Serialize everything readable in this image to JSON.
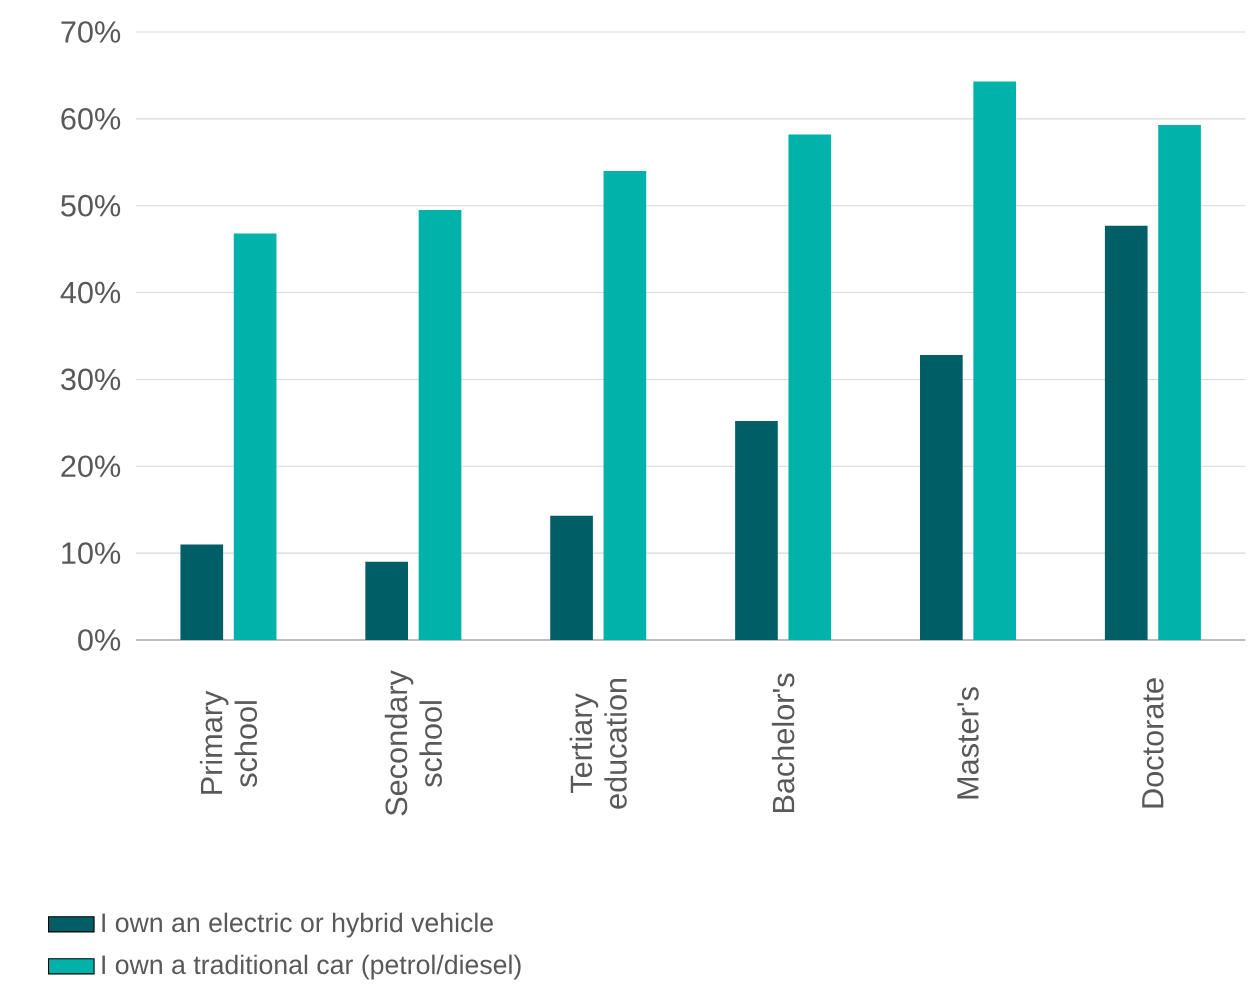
{
  "chart_data": {
    "type": "bar",
    "categories": [
      "Primary school",
      "Secondary school",
      "Tertiary education",
      "Bachelor's",
      "Master's",
      "Doctorate"
    ],
    "series": [
      {
        "name": "I own an electric or hybrid vehicle",
        "color": "#005f66",
        "values": [
          11,
          9,
          14.3,
          25.2,
          32.8,
          47.7
        ]
      },
      {
        "name": "I own a traditional car (petrol/diesel)",
        "color": "#00b2a9",
        "values": [
          46.8,
          49.5,
          54,
          58.2,
          64.3,
          59.3
        ]
      }
    ],
    "ylim": [
      0,
      70
    ],
    "yticks": [
      {
        "value": 0,
        "label": "0%"
      },
      {
        "value": 10,
        "label": "10%"
      },
      {
        "value": 20,
        "label": "20%"
      },
      {
        "value": 30,
        "label": "30%"
      },
      {
        "value": 40,
        "label": "40%"
      },
      {
        "value": 50,
        "label": "50%"
      },
      {
        "value": 60,
        "label": "60%"
      },
      {
        "value": 70,
        "label": "70%"
      }
    ],
    "grid": "y",
    "legend": "bottom left"
  }
}
